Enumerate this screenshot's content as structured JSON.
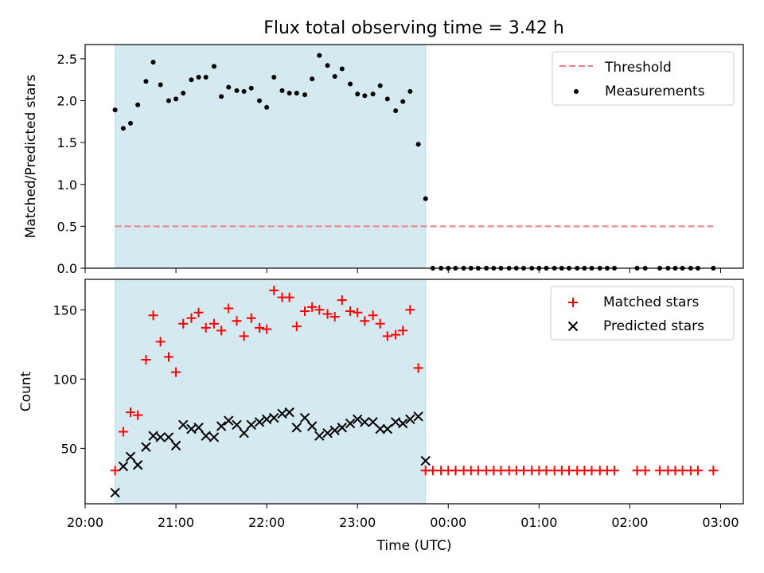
{
  "chart_data": {
    "title": "Flux total observing time = 3.42 h",
    "xlabel": "Time (UTC)",
    "x_unit": "hours",
    "x_ticks": [
      {
        "value": 20,
        "label": "20:00"
      },
      {
        "value": 21,
        "label": "21:00"
      },
      {
        "value": 22,
        "label": "22:00"
      },
      {
        "value": 23,
        "label": "23:00"
      },
      {
        "value": 24,
        "label": "00:00"
      },
      {
        "value": 25,
        "label": "01:00"
      },
      {
        "value": 26,
        "label": "02:00"
      },
      {
        "value": 27,
        "label": "03:00"
      }
    ],
    "xlim": [
      20.0,
      27.25
    ],
    "observing_window": [
      20.33,
      23.75
    ],
    "window_color": "#d4eaf0",
    "top": {
      "type": "scatter",
      "ylabel": "Matched/Predicted stars",
      "ylim": [
        0,
        2.67
      ],
      "yticks": [
        "0.0",
        "0.5",
        "1.0",
        "1.5",
        "2.0",
        "2.5"
      ],
      "threshold": {
        "name": "Threshold",
        "value": 0.5,
        "x_range": [
          20.33,
          26.92
        ],
        "color": "#f08080"
      },
      "measurements": {
        "name": "Measurements",
        "color": "#000000",
        "points": [
          [
            20.33,
            1.89
          ],
          [
            20.42,
            1.67
          ],
          [
            20.5,
            1.73
          ],
          [
            20.58,
            1.95
          ],
          [
            20.67,
            2.23
          ],
          [
            20.75,
            2.46
          ],
          [
            20.83,
            2.19
          ],
          [
            20.92,
            2.0
          ],
          [
            21.0,
            2.02
          ],
          [
            21.08,
            2.09
          ],
          [
            21.17,
            2.25
          ],
          [
            21.25,
            2.28
          ],
          [
            21.33,
            2.28
          ],
          [
            21.42,
            2.41
          ],
          [
            21.5,
            2.05
          ],
          [
            21.58,
            2.16
          ],
          [
            21.67,
            2.12
          ],
          [
            21.75,
            2.11
          ],
          [
            21.83,
            2.15
          ],
          [
            21.92,
            2.0
          ],
          [
            22.0,
            1.92
          ],
          [
            22.08,
            2.28
          ],
          [
            22.17,
            2.12
          ],
          [
            22.25,
            2.09
          ],
          [
            22.33,
            2.09
          ],
          [
            22.42,
            2.07
          ],
          [
            22.5,
            2.26
          ],
          [
            22.58,
            2.54
          ],
          [
            22.67,
            2.42
          ],
          [
            22.75,
            2.29
          ],
          [
            22.83,
            2.38
          ],
          [
            22.92,
            2.2
          ],
          [
            23.0,
            2.08
          ],
          [
            23.08,
            2.06
          ],
          [
            23.17,
            2.08
          ],
          [
            23.25,
            2.18
          ],
          [
            23.33,
            2.02
          ],
          [
            23.42,
            1.88
          ],
          [
            23.5,
            1.99
          ],
          [
            23.58,
            2.11
          ],
          [
            23.67,
            1.48
          ],
          [
            23.75,
            0.83
          ],
          [
            23.83,
            0
          ],
          [
            23.92,
            0
          ],
          [
            24.0,
            0
          ],
          [
            24.08,
            0
          ],
          [
            24.17,
            0
          ],
          [
            24.25,
            0
          ],
          [
            24.33,
            0
          ],
          [
            24.42,
            0
          ],
          [
            24.5,
            0
          ],
          [
            24.58,
            0
          ],
          [
            24.67,
            0
          ],
          [
            24.75,
            0
          ],
          [
            24.83,
            0
          ],
          [
            24.92,
            0
          ],
          [
            25.0,
            0
          ],
          [
            25.08,
            0
          ],
          [
            25.17,
            0
          ],
          [
            25.25,
            0
          ],
          [
            25.33,
            0
          ],
          [
            25.42,
            0
          ],
          [
            25.5,
            0
          ],
          [
            25.58,
            0
          ],
          [
            25.67,
            0
          ],
          [
            25.75,
            0
          ],
          [
            25.83,
            0
          ],
          [
            26.08,
            0
          ],
          [
            26.17,
            0
          ],
          [
            26.33,
            0
          ],
          [
            26.42,
            0
          ],
          [
            26.5,
            0
          ],
          [
            26.58,
            0
          ],
          [
            26.67,
            0
          ],
          [
            26.75,
            0
          ],
          [
            26.92,
            0
          ]
        ]
      }
    },
    "bottom": {
      "type": "scatter",
      "ylabel": "Count",
      "ylim": [
        10,
        172
      ],
      "yticks": [
        "50",
        "100",
        "150"
      ],
      "matched": {
        "name": "Matched stars",
        "color": "#ff0000",
        "points": [
          [
            20.33,
            34
          ],
          [
            20.42,
            62
          ],
          [
            20.5,
            76
          ],
          [
            20.58,
            74
          ],
          [
            20.67,
            114
          ],
          [
            20.75,
            146
          ],
          [
            20.83,
            127
          ],
          [
            20.92,
            116
          ],
          [
            21.0,
            105
          ],
          [
            21.08,
            140
          ],
          [
            21.17,
            144
          ],
          [
            21.25,
            148
          ],
          [
            21.33,
            137
          ],
          [
            21.42,
            140
          ],
          [
            21.5,
            135
          ],
          [
            21.58,
            151
          ],
          [
            21.67,
            142
          ],
          [
            21.75,
            131
          ],
          [
            21.83,
            144
          ],
          [
            21.92,
            137
          ],
          [
            22.0,
            136
          ],
          [
            22.08,
            164
          ],
          [
            22.17,
            159
          ],
          [
            22.25,
            159
          ],
          [
            22.33,
            138
          ],
          [
            22.42,
            149
          ],
          [
            22.5,
            152
          ],
          [
            22.58,
            150
          ],
          [
            22.67,
            147
          ],
          [
            22.75,
            145
          ],
          [
            22.83,
            157
          ],
          [
            22.92,
            149
          ],
          [
            23.0,
            148
          ],
          [
            23.08,
            142
          ],
          [
            23.17,
            146
          ],
          [
            23.25,
            140
          ],
          [
            23.33,
            131
          ],
          [
            23.42,
            132
          ],
          [
            23.5,
            135
          ],
          [
            23.58,
            150
          ],
          [
            23.67,
            108
          ],
          [
            23.75,
            34
          ],
          [
            23.83,
            34
          ],
          [
            23.92,
            34
          ],
          [
            24.0,
            34
          ],
          [
            24.08,
            34
          ],
          [
            24.17,
            34
          ],
          [
            24.25,
            34
          ],
          [
            24.33,
            34
          ],
          [
            24.42,
            34
          ],
          [
            24.5,
            34
          ],
          [
            24.58,
            34
          ],
          [
            24.67,
            34
          ],
          [
            24.75,
            34
          ],
          [
            24.83,
            34
          ],
          [
            24.92,
            34
          ],
          [
            25.0,
            34
          ],
          [
            25.08,
            34
          ],
          [
            25.17,
            34
          ],
          [
            25.25,
            34
          ],
          [
            25.33,
            34
          ],
          [
            25.42,
            34
          ],
          [
            25.5,
            34
          ],
          [
            25.58,
            34
          ],
          [
            25.67,
            34
          ],
          [
            25.75,
            34
          ],
          [
            25.83,
            34
          ],
          [
            26.08,
            34
          ],
          [
            26.17,
            34
          ],
          [
            26.33,
            34
          ],
          [
            26.42,
            34
          ],
          [
            26.5,
            34
          ],
          [
            26.58,
            34
          ],
          [
            26.67,
            34
          ],
          [
            26.75,
            34
          ],
          [
            26.92,
            34
          ]
        ]
      },
      "predicted": {
        "name": "Predicted stars",
        "color": "#000000",
        "points": [
          [
            20.33,
            18
          ],
          [
            20.42,
            37
          ],
          [
            20.5,
            44
          ],
          [
            20.58,
            38
          ],
          [
            20.67,
            51
          ],
          [
            20.75,
            59
          ],
          [
            20.83,
            58
          ],
          [
            20.92,
            58
          ],
          [
            21.0,
            52
          ],
          [
            21.08,
            67
          ],
          [
            21.17,
            64
          ],
          [
            21.25,
            65
          ],
          [
            21.33,
            59
          ],
          [
            21.42,
            58
          ],
          [
            21.5,
            66
          ],
          [
            21.58,
            70
          ],
          [
            21.67,
            67
          ],
          [
            21.75,
            61
          ],
          [
            21.83,
            67
          ],
          [
            21.92,
            69
          ],
          [
            22.0,
            71
          ],
          [
            22.08,
            72
          ],
          [
            22.17,
            75
          ],
          [
            22.25,
            76
          ],
          [
            22.33,
            65
          ],
          [
            22.42,
            72
          ],
          [
            22.5,
            66
          ],
          [
            22.58,
            59
          ],
          [
            22.67,
            61
          ],
          [
            22.75,
            63
          ],
          [
            22.83,
            65
          ],
          [
            22.92,
            68
          ],
          [
            23.0,
            71
          ],
          [
            23.08,
            69
          ],
          [
            23.17,
            69
          ],
          [
            23.25,
            64
          ],
          [
            23.33,
            64
          ],
          [
            23.42,
            69
          ],
          [
            23.5,
            68
          ],
          [
            23.58,
            71
          ],
          [
            23.67,
            73
          ],
          [
            23.75,
            41
          ]
        ]
      }
    }
  }
}
